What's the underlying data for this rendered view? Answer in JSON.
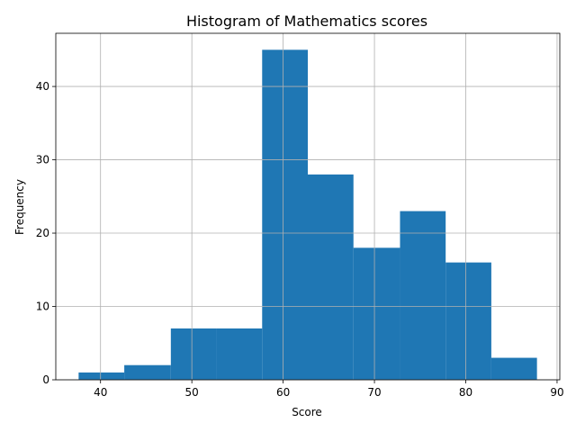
{
  "chart_data": {
    "type": "bar",
    "title": "Histogram of Mathematics scores",
    "xlabel": "Score",
    "ylabel": "Frequency",
    "bin_edges": [
      37.6,
      42.6,
      47.7,
      52.7,
      57.7,
      62.7,
      67.7,
      72.8,
      77.8,
      82.8,
      87.8
    ],
    "values": [
      1,
      2,
      7,
      7,
      45,
      28,
      18,
      23,
      16,
      3
    ],
    "xlim": [
      35.1,
      90.3
    ],
    "ylim": [
      0,
      47.25
    ],
    "xticks": [
      40,
      50,
      60,
      70,
      80,
      90
    ],
    "yticks": [
      0,
      10,
      20,
      30,
      40
    ],
    "grid": true,
    "bar_color": "#1f77b4"
  }
}
